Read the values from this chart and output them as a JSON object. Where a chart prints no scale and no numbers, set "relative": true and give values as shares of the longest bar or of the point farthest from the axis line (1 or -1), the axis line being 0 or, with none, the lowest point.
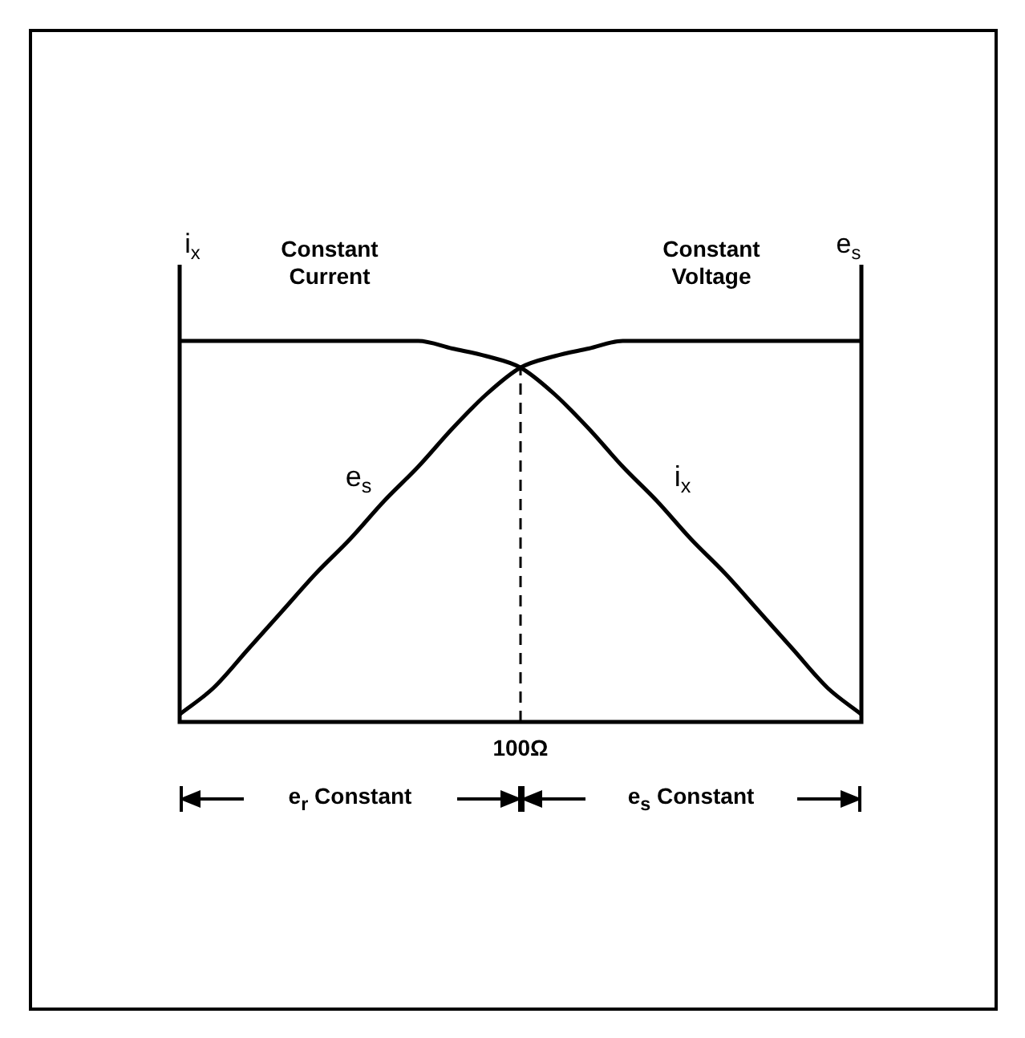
{
  "chart_data": {
    "type": "line",
    "relative": true,
    "ylabel": "i$_{x}$",
    "y2label": "e$_{s}$",
    "categories": [
      null,
      null,
      null,
      null,
      null,
      null,
      null,
      null,
      null,
      null,
      null,
      null,
      null,
      null,
      null,
      null,
      null,
      null,
      null,
      null,
      null
    ],
    "series": [
      {
        "name": "e$_{s}$",
        "color": "#000000",
        "values": [
          0.02,
          0.09,
          0.19,
          0.29,
          0.39,
          0.48,
          0.58,
          0.67,
          0.77,
          0.86,
          0.93,
          0.96,
          0.98,
          1,
          1,
          1,
          1,
          1,
          1,
          1,
          1
        ]
      },
      {
        "name": "i$_{x}$",
        "color": "#000000",
        "values": [
          1,
          1,
          1,
          1,
          1,
          1,
          1,
          1,
          0.98,
          0.96,
          0.93,
          0.86,
          0.77,
          0.67,
          0.58,
          0.48,
          0.39,
          0.29,
          0.19,
          0.09,
          0.02
        ]
      }
    ],
    "ref_lines": [
      {
        "axis": "x",
        "label": "100Ω",
        "color": "#000000",
        "line_style": "dashed"
      }
    ],
    "annotations": [
      "Constant\nCurrent",
      "Constant\nVoltage",
      "e$_{r}$ Constant",
      "e$_{s}$ Constant"
    ],
    "marker": "none",
    "line_style": "solid",
    "grid": false,
    "legend": false
  }
}
